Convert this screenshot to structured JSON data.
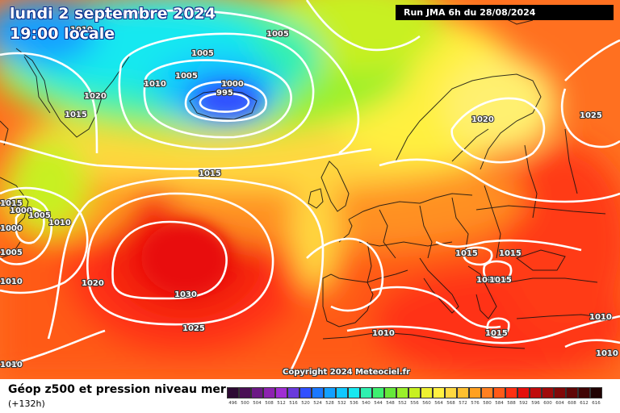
{
  "header": {
    "date": "lundi 2 septembre 2024",
    "time": "19:00 locale",
    "run": "Run JMA 6h du 28/08/2024"
  },
  "copyright": "Copyright 2024 Meteociel.fr",
  "footer": {
    "title": "Géop z500 et pression niveau mer",
    "subtitle": "(+132h)"
  },
  "legend": {
    "labels": [
      "496",
      "500",
      "504",
      "508",
      "512",
      "516",
      "520",
      "524",
      "528",
      "532",
      "536",
      "540",
      "544",
      "548",
      "552",
      "556",
      "560",
      "564",
      "568",
      "572",
      "576",
      "580",
      "584",
      "588",
      "592",
      "596",
      "600",
      "604",
      "608",
      "612",
      "616"
    ],
    "colors": [
      "#2d0a33",
      "#4a0f55",
      "#6c1a85",
      "#8d22b0",
      "#a02ed3",
      "#6a3adc",
      "#3050ff",
      "#1a78ff",
      "#12a0ff",
      "#10c8ff",
      "#18e8f0",
      "#30f0b0",
      "#3ef070",
      "#66e83a",
      "#9af02a",
      "#c8f020",
      "#eef030",
      "#fff040",
      "#ffd840",
      "#ffc030",
      "#ffa020",
      "#ff8020",
      "#ff5a18",
      "#ff3012",
      "#e4100c",
      "#c00c0c",
      "#a00a0a",
      "#800808",
      "#600606",
      "#400404",
      "#200202"
    ]
  },
  "isobars": {
    "labels": [
      "1010",
      "1005",
      "1005",
      "1005",
      "1010",
      "1000",
      "995",
      "1020",
      "1015",
      "1020",
      "1015",
      "1025",
      "1015",
      "1000",
      "1005",
      "1010",
      "1000",
      "1005",
      "1010",
      "1020",
      "1030",
      "1025",
      "1015",
      "1015",
      "1010",
      "1015",
      "1010",
      "1015",
      "1010",
      "1010",
      "1010"
    ]
  },
  "palette": {
    "cyan": "#38d8f0",
    "blue": "#2080ff",
    "green": "#50e050",
    "yellow": "#fff040",
    "orange": "#ffa020",
    "red": "#ff3012",
    "deep_red": "#e01010",
    "isobar": "#ffffff",
    "coast": "#101010"
  }
}
